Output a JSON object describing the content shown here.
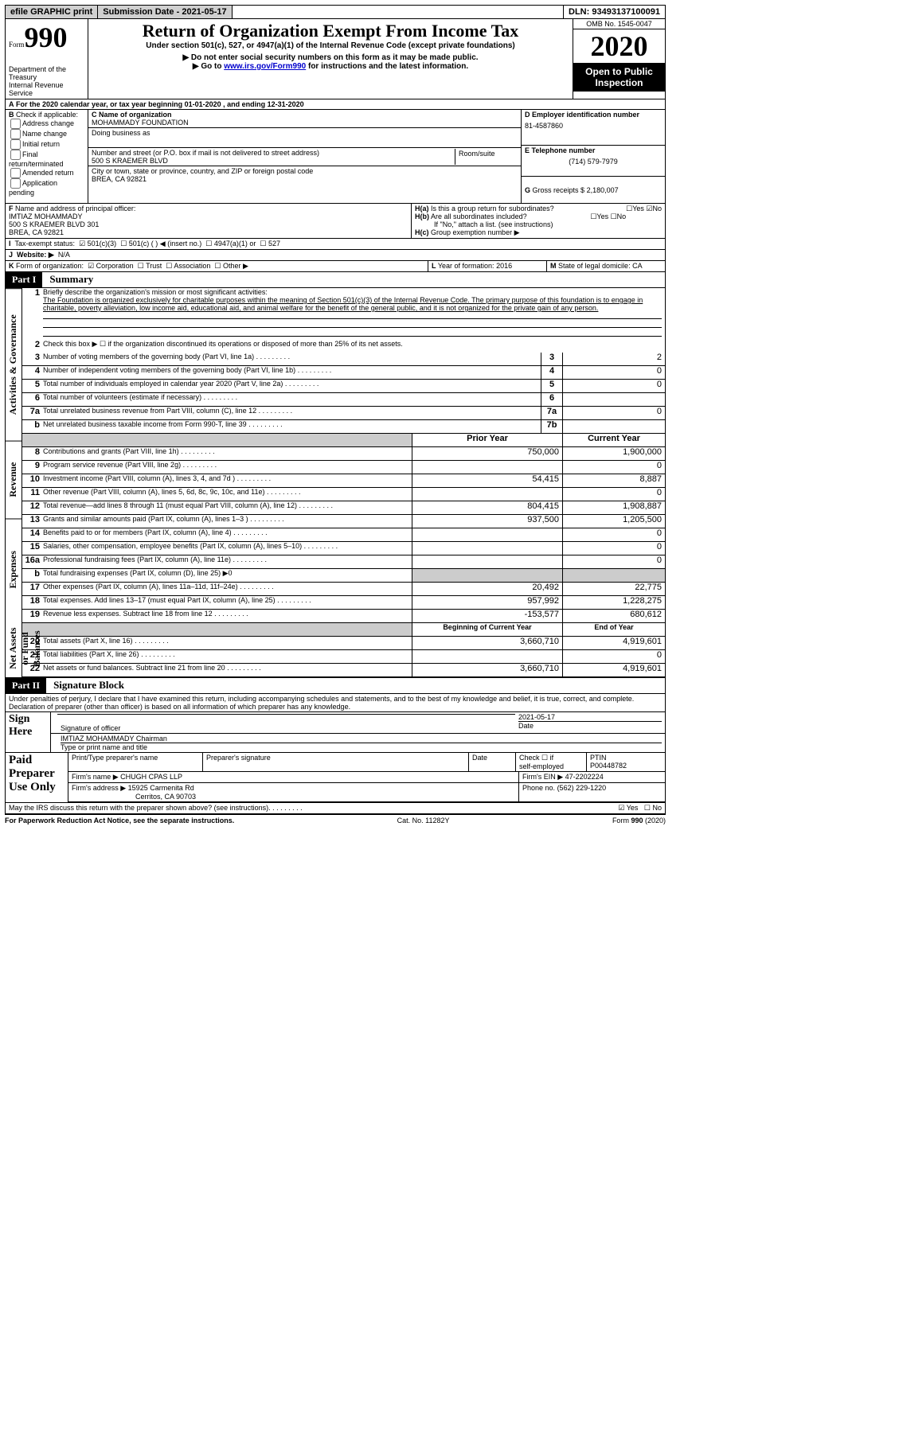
{
  "topbar": {
    "efile": "efile GRAPHIC print",
    "subdate_label": "Submission Date - ",
    "subdate": "2021-05-17",
    "dln_label": "DLN: ",
    "dln": "93493137100091"
  },
  "header": {
    "form_label": "Form",
    "form_no": "990",
    "dept": "Department of the Treasury\nInternal Revenue Service",
    "title": "Return of Organization Exempt From Income Tax",
    "sub1": "Under section 501(c), 527, or 4947(a)(1) of the Internal Revenue Code (except private foundations)",
    "sub2": "▶ Do not enter social security numbers on this form as it may be made public.",
    "sub3_pre": "▶ Go to ",
    "sub3_link": "www.irs.gov/Form990",
    "sub3_post": " for instructions and the latest information.",
    "omb": "OMB No. 1545-0047",
    "year": "2020",
    "inspect": "Open to Public Inspection"
  },
  "A": {
    "text": "For the 2020 calendar year, or tax year beginning 01-01-2020   , and ending 12-31-2020"
  },
  "B": {
    "label": "Check if applicable:",
    "items": [
      "Address change",
      "Name change",
      "Initial return",
      "Final return/terminated",
      "Amended return",
      "Application pending"
    ]
  },
  "C": {
    "label": "C Name of organization",
    "name": "MOHAMMADY FOUNDATION",
    "dba": "Doing business as",
    "addr_label": "Number and street (or P.O. box if mail is not delivered to street address)",
    "addr": "500 S KRAEMER BLVD",
    "room": "Room/suite",
    "city_label": "City or town, state or province, country, and ZIP or foreign postal code",
    "city": "BREA, CA  92821"
  },
  "D": {
    "label": "D Employer identification number",
    "val": "81-4587860"
  },
  "E": {
    "label": "E Telephone number",
    "val": "(714) 579-7979"
  },
  "G": {
    "label": "G",
    "text": "Gross receipts $",
    "val": "2,180,007"
  },
  "F": {
    "label": "F",
    "text": "Name and address of principal officer:",
    "lines": [
      "IMTIAZ MOHAMMADY",
      "500 S KRAEMER BLVD 301",
      "BREA, CA  92821"
    ]
  },
  "H": {
    "a": "Is this a group return for subordinates?",
    "b": "Are all subordinates included?",
    "note": "If \"No,\" attach a list. (see instructions)",
    "c": "Group exemption number ▶"
  },
  "I": {
    "label": "Tax-exempt status:",
    "opts": [
      "501(c)(3)",
      "501(c) (  ) ◀ (insert no.)",
      "4947(a)(1) or",
      "527"
    ]
  },
  "J": {
    "label": "Website: ▶",
    "val": "N/A"
  },
  "K": {
    "label": "Form of organization:",
    "opts": [
      "Corporation",
      "Trust",
      "Association",
      "Other ▶"
    ]
  },
  "L": {
    "label": "L",
    "text": "Year of formation:",
    "val": "2016"
  },
  "M": {
    "label": "M",
    "text": "State of legal domicile:",
    "val": "CA"
  },
  "partI": {
    "label": "Part I",
    "title": "Summary"
  },
  "sections": {
    "ag": "Activities & Governance",
    "rev": "Revenue",
    "exp": "Expenses",
    "nafb": "Net Assets or Fund Balances"
  },
  "cols": {
    "prior": "Prior Year",
    "curr": "Current Year",
    "begin": "Beginning of Current Year",
    "end": "End of Year"
  },
  "l1": {
    "label": "Briefly describe the organization's mission or most significant activities:",
    "text": "The Foundation is organized exclusively for charitable purposes within the meaning of Section 501(c)(3) of the Internal Revenue Code. The primary purpose of this foundation is to engage in charitable, poverty alleviation, low income aid, educational aid, and animal welfare for the benefit of the general public, and it is not organized for the private gain of any person."
  },
  "l2": "Check this box ▶ ☐  if the organization discontinued its operations or disposed of more than 25% of its net assets.",
  "lines_ag": [
    {
      "n": "3",
      "t": "Number of voting members of the governing body (Part VI, line 1a)",
      "m": "3",
      "v": "2"
    },
    {
      "n": "4",
      "t": "Number of independent voting members of the governing body (Part VI, line 1b)",
      "m": "4",
      "v": "0"
    },
    {
      "n": "5",
      "t": "Total number of individuals employed in calendar year 2020 (Part V, line 2a)",
      "m": "5",
      "v": "0"
    },
    {
      "n": "6",
      "t": "Total number of volunteers (estimate if necessary)",
      "m": "6",
      "v": ""
    },
    {
      "n": "7a",
      "t": "Total unrelated business revenue from Part VIII, column (C), line 12",
      "m": "7a",
      "v": "0"
    },
    {
      "n": "b",
      "t": "Net unrelated business taxable income from Form 990-T, line 39",
      "m": "7b",
      "v": ""
    }
  ],
  "lines_rev": [
    {
      "n": "8",
      "t": "Contributions and grants (Part VIII, line 1h)",
      "p": "750,000",
      "c": "1,900,000"
    },
    {
      "n": "9",
      "t": "Program service revenue (Part VIII, line 2g)",
      "p": "",
      "c": "0"
    },
    {
      "n": "10",
      "t": "Investment income (Part VIII, column (A), lines 3, 4, and 7d )",
      "p": "54,415",
      "c": "8,887"
    },
    {
      "n": "11",
      "t": "Other revenue (Part VIII, column (A), lines 5, 6d, 8c, 9c, 10c, and 11e)",
      "p": "",
      "c": "0"
    },
    {
      "n": "12",
      "t": "Total revenue—add lines 8 through 11 (must equal Part VIII, column (A), line 12)",
      "p": "804,415",
      "c": "1,908,887"
    }
  ],
  "lines_exp": [
    {
      "n": "13",
      "t": "Grants and similar amounts paid (Part IX, column (A), lines 1–3 )",
      "p": "937,500",
      "c": "1,205,500"
    },
    {
      "n": "14",
      "t": "Benefits paid to or for members (Part IX, column (A), line 4)",
      "p": "",
      "c": "0"
    },
    {
      "n": "15",
      "t": "Salaries, other compensation, employee benefits (Part IX, column (A), lines 5–10)",
      "p": "",
      "c": "0"
    },
    {
      "n": "16a",
      "t": "Professional fundraising fees (Part IX, column (A), line 11e)",
      "p": "",
      "c": "0"
    },
    {
      "n": "b",
      "t": "Total fundraising expenses (Part IX, column (D), line 25) ▶0",
      "shade": true
    },
    {
      "n": "17",
      "t": "Other expenses (Part IX, column (A), lines 11a–11d, 11f–24e)",
      "p": "20,492",
      "c": "22,775"
    },
    {
      "n": "18",
      "t": "Total expenses. Add lines 13–17 (must equal Part IX, column (A), line 25)",
      "p": "957,992",
      "c": "1,228,275"
    },
    {
      "n": "19",
      "t": "Revenue less expenses. Subtract line 18 from line 12",
      "p": "-153,577",
      "c": "680,612"
    }
  ],
  "lines_na": [
    {
      "n": "20",
      "t": "Total assets (Part X, line 16)",
      "p": "3,660,710",
      "c": "4,919,601"
    },
    {
      "n": "21",
      "t": "Total liabilities (Part X, line 26)",
      "p": "",
      "c": "0"
    },
    {
      "n": "22",
      "t": "Net assets or fund balances. Subtract line 21 from line 20",
      "p": "3,660,710",
      "c": "4,919,601"
    }
  ],
  "partII": {
    "label": "Part II",
    "title": "Signature Block"
  },
  "jurat": "Under penalties of perjury, I declare that I have examined this return, including accompanying schedules and statements, and to the best of my knowledge and belief, it is true, correct, and complete. Declaration of preparer (other than officer) is based on all information of which preparer has any knowledge.",
  "sign": {
    "here": "Sign Here",
    "sig_line": "Signature of officer",
    "date": "Date",
    "sig_date": "2021-05-17",
    "name_line": "IMTIAZ MOHAMMADY Chairman",
    "type_line": "Type or print name and title"
  },
  "prep": {
    "label": "Paid Preparer Use Only",
    "h1": "Print/Type preparer's name",
    "h2": "Preparer's signature",
    "h3": "Date",
    "h4_a": "Check ☐ if",
    "h4_b": "self-employed",
    "h5": "PTIN",
    "ptin": "P00448782",
    "firm": "Firm's name   ▶",
    "firm_v": "CHUGH CPAS LLP",
    "ein": "Firm's EIN ▶",
    "ein_v": "47-2202224",
    "addr": "Firm's address ▶",
    "addr_v1": "15925 Carmenita Rd",
    "addr_v2": "Cerritos, CA  90703",
    "phone": "Phone no.",
    "phone_v": "(562) 229-1220"
  },
  "irs_q": "May the IRS discuss this return with the preparer shown above? (see instructions)",
  "footer": {
    "pra": "For Paperwork Reduction Act Notice, see the separate instructions.",
    "cat": "Cat. No. 11282Y",
    "form": "Form 990 (2020)"
  },
  "colors": {
    "link": "#0000cc",
    "shade": "#cccccc"
  }
}
